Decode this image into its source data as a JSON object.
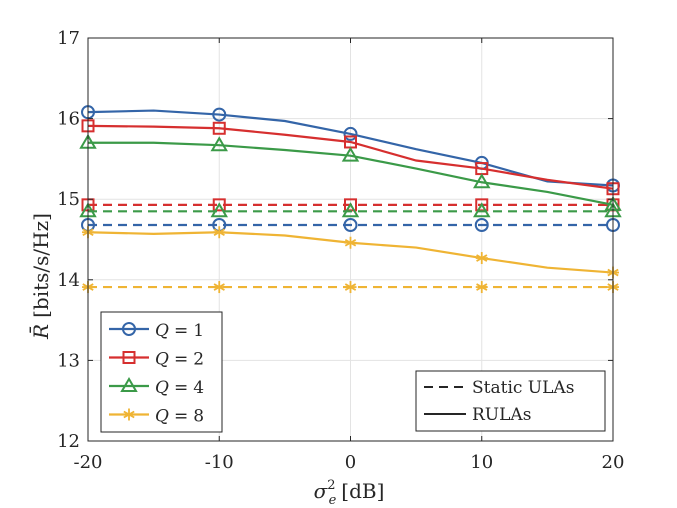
{
  "chart_data": {
    "type": "line",
    "xlabel": "σ",
    "xlabel_sup": "2",
    "xlabel_sub": "e",
    "xlabel_unit": "[dB]",
    "ylabel": "R̄",
    "ylabel_unit": "[bits/s/Hz]",
    "xlim": [
      -20,
      20
    ],
    "ylim": [
      12,
      17
    ],
    "xticks": [
      -20,
      -10,
      0,
      10,
      20
    ],
    "yticks": [
      12,
      13,
      14,
      15,
      16,
      17
    ],
    "grid": true,
    "x": [
      -20,
      -15,
      -10,
      -5,
      0,
      5,
      10,
      15,
      20
    ],
    "marker_x": [
      -20,
      -10,
      0,
      10,
      20
    ],
    "series": [
      {
        "name": "Q = 1",
        "q": "1",
        "color": "#3465a8",
        "marker": "circle",
        "style": "solid",
        "values": [
          16.08,
          16.1,
          16.05,
          15.97,
          15.81,
          15.62,
          15.45,
          15.22,
          15.17
        ]
      },
      {
        "name": "Q = 2",
        "q": "2",
        "color": "#d62f2f",
        "marker": "square",
        "style": "solid",
        "values": [
          15.91,
          15.9,
          15.88,
          15.8,
          15.71,
          15.48,
          15.38,
          15.24,
          15.13
        ]
      },
      {
        "name": "Q = 4",
        "q": "4",
        "color": "#3b9a48",
        "marker": "triangle",
        "style": "solid",
        "values": [
          15.7,
          15.7,
          15.67,
          15.61,
          15.54,
          15.38,
          15.21,
          15.09,
          14.93
        ]
      },
      {
        "name": "Q = 8",
        "q": "8",
        "color": "#efb434",
        "marker": "asterisk",
        "style": "solid",
        "values": [
          14.59,
          14.57,
          14.59,
          14.55,
          14.46,
          14.4,
          14.27,
          14.15,
          14.09
        ]
      },
      {
        "name": "Q = 1 static",
        "q": "1",
        "color": "#3465a8",
        "marker": "circle",
        "style": "dashed",
        "values": [
          14.68,
          14.68,
          14.68,
          14.68,
          14.68,
          14.68,
          14.68,
          14.68,
          14.68
        ]
      },
      {
        "name": "Q = 2 static",
        "q": "2",
        "color": "#d62f2f",
        "marker": "square",
        "style": "dashed",
        "values": [
          14.93,
          14.93,
          14.93,
          14.93,
          14.93,
          14.93,
          14.93,
          14.93,
          14.93
        ]
      },
      {
        "name": "Q = 4 static",
        "q": "4",
        "color": "#3b9a48",
        "marker": "triangle",
        "style": "dashed",
        "values": [
          14.85,
          14.85,
          14.85,
          14.85,
          14.85,
          14.85,
          14.85,
          14.85,
          14.85
        ]
      },
      {
        "name": "Q = 8 static",
        "q": "8",
        "color": "#efb434",
        "marker": "asterisk",
        "style": "dashed",
        "values": [
          13.91,
          13.91,
          13.91,
          13.91,
          13.91,
          13.91,
          13.91,
          13.91,
          13.91
        ]
      }
    ],
    "legend_series": [
      {
        "q_label": "Q",
        "eq": "=",
        "value": "1",
        "color": "#3465a8",
        "marker": "circle"
      },
      {
        "q_label": "Q",
        "eq": "=",
        "value": "2",
        "color": "#d62f2f",
        "marker": "square"
      },
      {
        "q_label": "Q",
        "eq": "=",
        "value": "4",
        "color": "#3b9a48",
        "marker": "triangle"
      },
      {
        "q_label": "Q",
        "eq": "=",
        "value": "8",
        "color": "#efb434",
        "marker": "asterisk"
      }
    ],
    "legend_style": [
      {
        "label": "Static ULAs",
        "style": "dashed"
      },
      {
        "label": "RULAs",
        "style": "solid"
      }
    ],
    "legend_series_position": "bottom-left",
    "legend_style_position": "bottom-right"
  }
}
